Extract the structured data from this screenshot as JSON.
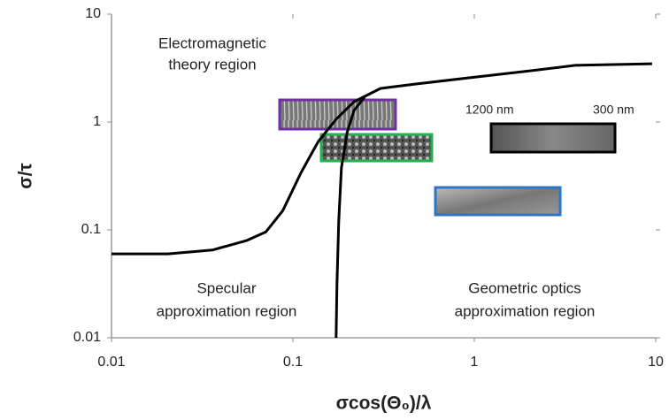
{
  "chart_data": {
    "type": "line",
    "x_label": "σcos(Θ₀)/λ",
    "y_label": "σ/τ",
    "xscale": "log",
    "yscale": "log",
    "xlim": [
      0.01,
      10
    ],
    "ylim": [
      0.01,
      10
    ],
    "xticks": [
      0.01,
      0.1,
      1,
      10
    ],
    "yticks": [
      0.01,
      0.1,
      1,
      10
    ],
    "series": [
      {
        "color": "#000000",
        "x": [
          0.01,
          0.0205,
          0.036,
          0.056,
          0.071,
          0.088,
          0.111,
          0.138,
          0.173,
          0.217,
          0.304,
          0.476,
          0.935,
          2.05,
          3.6,
          9.55
        ],
        "values": [
          0.06,
          0.06,
          0.065,
          0.08,
          0.096,
          0.151,
          0.341,
          0.66,
          1.06,
          1.54,
          2.05,
          2.25,
          2.57,
          2.99,
          3.35,
          3.47
        ]
      },
      {
        "color": "#000000",
        "x": [
          0.173,
          0.175,
          0.179,
          0.185,
          0.199,
          0.217,
          0.248
        ],
        "values": [
          0.01,
          0.032,
          0.121,
          0.375,
          0.8,
          1.28,
          1.7
        ]
      }
    ],
    "annotations": [
      {
        "lines": [
          "Electromagnetic",
          "theory region"
        ]
      },
      {
        "lines": [
          "Specular",
          "approximation region"
        ]
      },
      {
        "lines": [
          "Geometric optics",
          "approximation region"
        ]
      },
      {
        "lines": [
          "1200 nm"
        ]
      },
      {
        "lines": [
          "300 nm"
        ]
      }
    ]
  }
}
